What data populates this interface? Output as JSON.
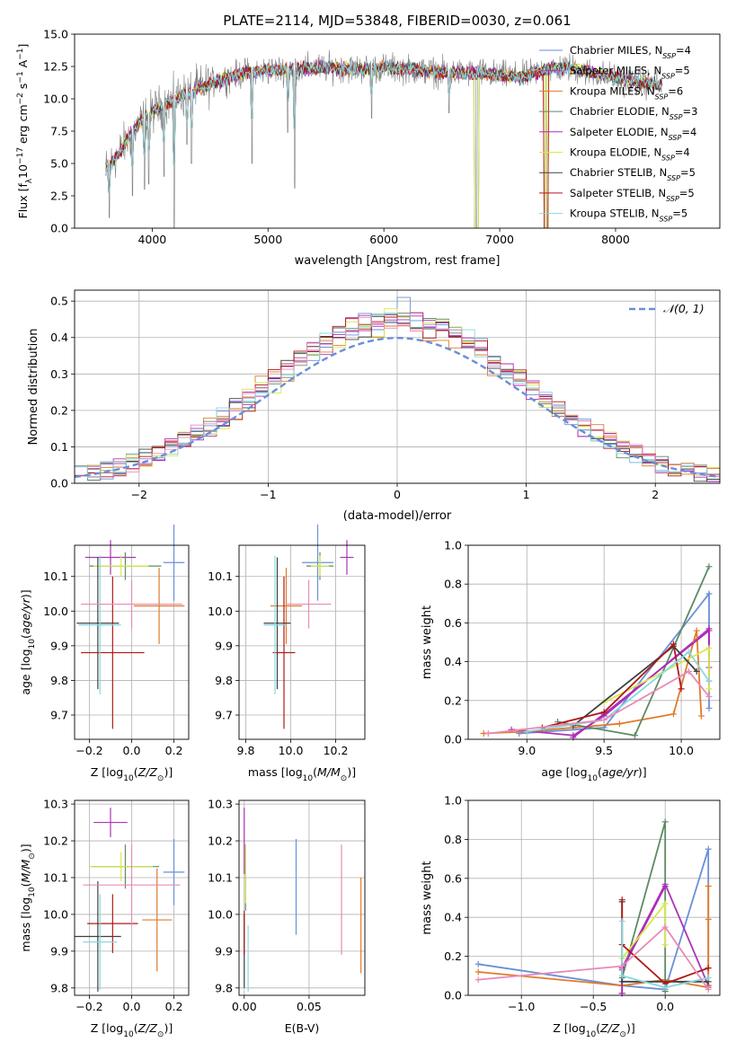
{
  "figure_title": "PLATE=2114, MJD=53848, FIBERID=0030, z=0.061",
  "colors": {
    "Chabrier MILES": "#6a8fd8",
    "Salpeter MILES": "#a935b8",
    "Kroupa MILES": "#e07b2a",
    "Chabrier ELODIE": "#5e8a64",
    "Salpeter ELODIE": "#b02ab8",
    "Kroupa ELODIE": "#d8e84a",
    "Chabrier STELIB": "#404040",
    "Salpeter STELIB": "#b01818",
    "Kroupa STELIB": "#88d8e0",
    "pink": "#e88ab8",
    "data": "#808080",
    "normal": "#6a8fd8"
  },
  "chart_data": [
    {
      "id": "spectrum",
      "type": "line",
      "title": "PLATE=2114, MJD=53848, FIBERID=0030, z=0.061",
      "xlabel": "wavelength [Angstrom, rest frame]",
      "ylabel": "Flux [f_λ10^-17 erg cm^-2 s^-1 A^-1]",
      "xlim": [
        3330,
        8900
      ],
      "ylim": [
        0,
        15
      ],
      "xticks": [
        "4000",
        "5000",
        "6000",
        "7000",
        "8000"
      ],
      "yticks": [
        "0.0",
        "2.5",
        "5.0",
        "7.5",
        "10.0",
        "12.5",
        "15.0"
      ],
      "legend_position": "right",
      "legend": [
        {
          "model": "Chabrier MILES",
          "n_ssp": "4"
        },
        {
          "model": "Salpeter MILES",
          "n_ssp": "5"
        },
        {
          "model": "Kroupa MILES",
          "n_ssp": "6"
        },
        {
          "model": "Chabrier ELODIE",
          "n_ssp": "3"
        },
        {
          "model": "Salpeter ELODIE",
          "n_ssp": "4"
        },
        {
          "model": "Kroupa ELODIE",
          "n_ssp": "4"
        },
        {
          "model": "Chabrier STELIB",
          "n_ssp": "5"
        },
        {
          "model": "Salpeter STELIB",
          "n_ssp": "5"
        },
        {
          "model": "Kroupa STELIB",
          "n_ssp": "5"
        }
      ],
      "continuum": [
        [
          3600,
          4.5
        ],
        [
          3700,
          5.6
        ],
        [
          3800,
          7.0
        ],
        [
          3900,
          8.2
        ],
        [
          4000,
          9.0
        ],
        [
          4200,
          10.0
        ],
        [
          4400,
          10.8
        ],
        [
          4600,
          11.5
        ],
        [
          4800,
          12.0
        ],
        [
          5000,
          12.2
        ],
        [
          5200,
          12.3
        ],
        [
          5400,
          12.4
        ],
        [
          5600,
          12.4
        ],
        [
          5800,
          12.3
        ],
        [
          6000,
          12.4
        ],
        [
          6200,
          12.3
        ],
        [
          6400,
          12.1
        ],
        [
          6600,
          12.0
        ],
        [
          6800,
          12.0
        ],
        [
          7000,
          11.8
        ],
        [
          7200,
          11.7
        ],
        [
          7400,
          12.3
        ],
        [
          7600,
          12.4
        ],
        [
          7800,
          12.0
        ],
        [
          8000,
          11.6
        ],
        [
          8200,
          11.3
        ],
        [
          8400,
          11.0
        ]
      ],
      "dips": [
        [
          3630,
          0.8
        ],
        [
          3830,
          2.5
        ],
        [
          3935,
          3.0
        ],
        [
          3970,
          3.4
        ],
        [
          4102,
          4.0
        ],
        [
          4190,
          0
        ],
        [
          4300,
          6.5
        ],
        [
          4340,
          5.0
        ],
        [
          4861,
          5.0
        ],
        [
          5170,
          7.4
        ],
        [
          5230,
          3.1
        ],
        [
          5893,
          8.5
        ],
        [
          6563,
          8.9
        ],
        [
          6800,
          0
        ],
        [
          7400,
          0
        ]
      ],
      "data_x_range": [
        3600,
        8400
      ]
    },
    {
      "id": "residuals",
      "type": "histogram",
      "xlabel": "(data-model)/error",
      "ylabel": "Normed distribution",
      "xlim": [
        -2.5,
        2.5
      ],
      "ylim": [
        0,
        0.53
      ],
      "xticks": [
        "−2",
        "−1",
        "0",
        "1",
        "2"
      ],
      "yticks": [
        "0.0",
        "0.1",
        "0.2",
        "0.3",
        "0.4",
        "0.5"
      ],
      "legend": [
        "𝒩(0, 1)"
      ],
      "legend_position": "upper right",
      "bin_width": 0.1,
      "bin_start": -2.5,
      "peak_bin_value": 0.51,
      "curve": "normal pdf, mean 0, sigma 1"
    },
    {
      "id": "age-vs-Z",
      "type": "errorbar",
      "xlabel": "Z [log10(Z/Z⊙)]",
      "ylabel": "age  [log10(age/yr)]",
      "xlim": [
        -0.27,
        0.27
      ],
      "ylim": [
        9.63,
        10.19
      ],
      "xticks": [
        "−0.2",
        "0.0",
        "0.2"
      ],
      "yticks": [
        "9.7",
        "9.8",
        "9.9",
        "10.0",
        "10.1"
      ],
      "points": [
        {
          "series": "Chabrier MILES",
          "x": 0.2,
          "y": 10.14,
          "xerr": 0.05,
          "yerr": 0.11
        },
        {
          "series": "Salpeter MILES",
          "x": -0.1,
          "y": 10.155,
          "xerr": 0.12,
          "yerr": 0.05
        },
        {
          "series": "Kroupa MILES",
          "x": 0.13,
          "y": 10.015,
          "xerr": 0.12,
          "yerr": 0.11
        },
        {
          "series": "Chabrier ELODIE",
          "x": -0.03,
          "y": 10.13,
          "xerr": 0.17,
          "yerr": 0.04
        },
        {
          "series": "Kroupa ELODIE",
          "x": -0.05,
          "y": 10.13,
          "xerr": 0.13,
          "yerr": 0.03
        },
        {
          "series": "Chabrier STELIB",
          "x": -0.16,
          "y": 9.965,
          "xerr": 0.1,
          "yerr": 0.19
        },
        {
          "series": "Salpeter STELIB",
          "x": -0.09,
          "y": 9.88,
          "xerr": 0.15,
          "yerr": 0.22
        },
        {
          "series": "Kroupa STELIB",
          "x": -0.15,
          "y": 9.96,
          "xerr": 0.1,
          "yerr": 0.2
        },
        {
          "series": "pink",
          "x": 0.0,
          "y": 10.02,
          "xerr": 0.24,
          "yerr": 0.07
        }
      ]
    },
    {
      "id": "age-vs-mass",
      "type": "errorbar",
      "xlabel": "mass [log10(M/M⊙)]",
      "xlim": [
        9.77,
        10.33
      ],
      "ylim": [
        9.63,
        10.19
      ],
      "xticks": [
        "9.8",
        "10.0",
        "10.2"
      ],
      "yticks": [
        "9.7",
        "9.8",
        "9.9",
        "10.0",
        "10.1"
      ],
      "points": [
        {
          "series": "Chabrier MILES",
          "x": 10.12,
          "y": 10.14,
          "xerr": 0.07,
          "yerr": 0.11
        },
        {
          "series": "Salpeter MILES",
          "x": 10.25,
          "y": 10.155,
          "xerr": 0.03,
          "yerr": 0.05
        },
        {
          "series": "Kroupa MILES",
          "x": 9.98,
          "y": 10.015,
          "xerr": 0.07,
          "yerr": 0.11
        },
        {
          "series": "Chabrier ELODIE",
          "x": 10.13,
          "y": 10.13,
          "xerr": 0.06,
          "yerr": 0.04
        },
        {
          "series": "Kroupa ELODIE",
          "x": 10.13,
          "y": 10.13,
          "xerr": 0.04,
          "yerr": 0.03
        },
        {
          "series": "Chabrier STELIB",
          "x": 9.94,
          "y": 9.965,
          "xerr": 0.06,
          "yerr": 0.19
        },
        {
          "series": "Salpeter STELIB",
          "x": 9.97,
          "y": 9.88,
          "xerr": 0.05,
          "yerr": 0.22
        },
        {
          "series": "Kroupa STELIB",
          "x": 9.93,
          "y": 9.96,
          "xerr": 0.05,
          "yerr": 0.2
        },
        {
          "series": "pink",
          "x": 10.08,
          "y": 10.02,
          "xerr": 0.1,
          "yerr": 0.07
        }
      ]
    },
    {
      "id": "weight-vs-age",
      "type": "line",
      "ylabel": "mass weight",
      "xlabel": "age  [log10(age/yr)]",
      "xlim": [
        8.62,
        10.25
      ],
      "ylim": [
        0,
        1
      ],
      "xticks": [
        "9.0",
        "9.5",
        "10.0"
      ],
      "yticks": [
        "0.0",
        "0.2",
        "0.4",
        "0.6",
        "0.8",
        "1.0"
      ],
      "series": [
        {
          "name": "Chabrier MILES",
          "x": [
            8.95,
            9.5,
            10.18,
            10.18
          ],
          "y": [
            0.03,
            0.06,
            0.75,
            0.16
          ]
        },
        {
          "name": "Salpeter MILES",
          "x": [
            8.9,
            9.3,
            9.5,
            10.18,
            10.18
          ],
          "y": [
            0.05,
            0.02,
            0.12,
            0.57,
            0.37
          ]
        },
        {
          "name": "Kroupa MILES",
          "x": [
            8.72,
            9.0,
            9.6,
            9.95,
            10.1,
            10.13
          ],
          "y": [
            0.03,
            0.04,
            0.08,
            0.13,
            0.56,
            0.12
          ]
        },
        {
          "name": "Chabrier ELODIE",
          "x": [
            9.2,
            9.7,
            10.18
          ],
          "y": [
            0.09,
            0.02,
            0.89
          ]
        },
        {
          "name": "Salpeter ELODIE",
          "x": [
            9.3,
            9.5,
            10.18,
            10.18
          ],
          "y": [
            0.01,
            0.13,
            0.56,
            0.3
          ]
        },
        {
          "name": "Kroupa ELODIE",
          "x": [
            9.5,
            10.18,
            10.18
          ],
          "y": [
            0.19,
            0.47,
            0.26
          ]
        },
        {
          "name": "Chabrier STELIB",
          "x": [
            9.3,
            9.95,
            10.1
          ],
          "y": [
            0.07,
            0.48,
            0.35
          ]
        },
        {
          "name": "Salpeter STELIB",
          "x": [
            9.1,
            9.5,
            9.95,
            10.0
          ],
          "y": [
            0.06,
            0.14,
            0.49,
            0.26
          ]
        },
        {
          "name": "Kroupa STELIB",
          "x": [
            9.0,
            9.5,
            10.05,
            10.18
          ],
          "y": [
            0.04,
            0.1,
            0.45,
            0.3
          ]
        },
        {
          "name": "pink",
          "x": [
            8.75,
            9.5,
            10.05,
            10.18
          ],
          "y": [
            0.03,
            0.1,
            0.35,
            0.22
          ]
        }
      ]
    },
    {
      "id": "mass-vs-Z",
      "type": "errorbar",
      "xlabel": "Z [log10(Z/Z⊙)]",
      "ylabel": "mass [log10(M/M⊙)]",
      "xlim": [
        -0.27,
        0.27
      ],
      "ylim": [
        9.78,
        10.31
      ],
      "xticks": [
        "−0.2",
        "0.0",
        "0.2"
      ],
      "yticks": [
        "9.8",
        "9.9",
        "10.0",
        "10.1",
        "10.2",
        "10.3"
      ],
      "points": [
        {
          "series": "Chabrier MILES",
          "x": 0.2,
          "y": 10.115,
          "xerr": 0.05,
          "yerr": 0.09
        },
        {
          "series": "Salpeter MILES",
          "x": -0.1,
          "y": 10.25,
          "xerr": 0.08,
          "yerr": 0.04
        },
        {
          "series": "Kroupa MILES",
          "x": 0.12,
          "y": 9.985,
          "xerr": 0.07,
          "yerr": 0.14
        },
        {
          "series": "Chabrier ELODIE",
          "x": -0.03,
          "y": 10.13,
          "xerr": 0.16,
          "yerr": 0.06
        },
        {
          "series": "Kroupa ELODIE",
          "x": -0.05,
          "y": 10.13,
          "xerr": 0.15,
          "yerr": 0.04
        },
        {
          "series": "Chabrier STELIB",
          "x": -0.16,
          "y": 9.94,
          "xerr": 0.11,
          "yerr": 0.15
        },
        {
          "series": "Salpeter STELIB",
          "x": -0.09,
          "y": 9.975,
          "xerr": 0.12,
          "yerr": 0.08
        },
        {
          "series": "Kroupa STELIB",
          "x": -0.15,
          "y": 9.925,
          "xerr": 0.08,
          "yerr": 0.13
        },
        {
          "series": "pink",
          "x": 0.0,
          "y": 10.08,
          "xerr": 0.23,
          "yerr": 0.11
        }
      ]
    },
    {
      "id": "mass-vs-EBV",
      "type": "errorbar",
      "xlabel": "E(B-V)",
      "xlim": [
        -0.004,
        0.093
      ],
      "ylim": [
        9.78,
        10.31
      ],
      "xticks": [
        "0.00",
        "0.05"
      ],
      "yticks": [
        "9.8",
        "9.9",
        "10.0",
        "10.1",
        "10.2",
        "10.3"
      ],
      "points": [
        {
          "series": "Chabrier MILES",
          "x": 0.04,
          "y": 10.075,
          "yerr": 0.13
        },
        {
          "series": "Salpeter MILES",
          "x": 0.0,
          "y": 10.2,
          "yerr": 0.09
        },
        {
          "series": "Kroupa MILES",
          "x": 0.09,
          "y": 9.97,
          "yerr": 0.13
        },
        {
          "series": "Chabrier ELODIE",
          "x": 0.001,
          "y": 10.1,
          "yerr": 0.09
        },
        {
          "series": "Kroupa ELODIE",
          "x": 0.001,
          "y": 10.11,
          "yerr": 0.08
        },
        {
          "series": "Chabrier STELIB",
          "x": 0.0,
          "y": 9.9,
          "yerr": 0.1
        },
        {
          "series": "Salpeter STELIB",
          "x": 0.0,
          "y": 9.95,
          "yerr": 0.06
        },
        {
          "series": "Kroupa STELIB",
          "x": 0.003,
          "y": 9.88,
          "yerr": 0.09
        },
        {
          "series": "pink",
          "x": 0.075,
          "y": 10.04,
          "yerr": 0.15
        }
      ]
    },
    {
      "id": "weight-vs-Z",
      "type": "line",
      "ylabel": "mass weight",
      "xlabel": "Z [log10(Z/Z⊙)]",
      "xlim": [
        -1.37,
        0.38
      ],
      "ylim": [
        0,
        1
      ],
      "xticks": [
        "−1.0",
        "−0.5",
        "0.0"
      ],
      "yticks": [
        "0.0",
        "0.2",
        "0.4",
        "0.6",
        "0.8",
        "1.0"
      ],
      "series": [
        {
          "name": "Chabrier MILES",
          "x": [
            -1.3,
            -0.3,
            0.0,
            0.3,
            0.3
          ],
          "y": [
            0.16,
            0.05,
            0.03,
            0.75,
            0.04
          ]
        },
        {
          "name": "Salpeter MILES",
          "x": [
            -0.3,
            -0.3,
            0.0,
            0.3
          ],
          "y": [
            0.01,
            0.14,
            0.57,
            0.05
          ]
        },
        {
          "name": "Kroupa MILES",
          "x": [
            -1.3,
            -0.3,
            0.0,
            0.3,
            0.3,
            0.3
          ],
          "y": [
            0.12,
            0.05,
            0.08,
            0.04,
            0.56,
            0.39
          ]
        },
        {
          "name": "Chabrier ELODIE",
          "x": [
            -0.3,
            0.0,
            0.0
          ],
          "y": [
            0.09,
            0.89,
            0.02
          ]
        },
        {
          "name": "Salpeter ELODIE",
          "x": [
            -0.3,
            -0.3,
            0.0
          ],
          "y": [
            0.01,
            0.13,
            0.56
          ]
        },
        {
          "name": "Kroupa ELODIE",
          "x": [
            -0.3,
            0.0,
            0.0
          ],
          "y": [
            0.19,
            0.47,
            0.26
          ]
        },
        {
          "name": "Chabrier STELIB",
          "x": [
            -0.3,
            -0.3,
            0.3
          ],
          "y": [
            0.48,
            0.07,
            0.07
          ]
        },
        {
          "name": "Salpeter STELIB",
          "x": [
            -0.3,
            -0.3,
            0.0,
            0.3
          ],
          "y": [
            0.49,
            0.26,
            0.06,
            0.14
          ]
        },
        {
          "name": "Kroupa STELIB",
          "x": [
            -0.3,
            -0.3,
            0.0,
            0.3
          ],
          "y": [
            0.38,
            0.1,
            0.04,
            0.09
          ]
        },
        {
          "name": "pink",
          "x": [
            -1.3,
            -0.3,
            0.0,
            0.3
          ],
          "y": [
            0.08,
            0.15,
            0.35,
            0.03
          ]
        }
      ]
    }
  ]
}
